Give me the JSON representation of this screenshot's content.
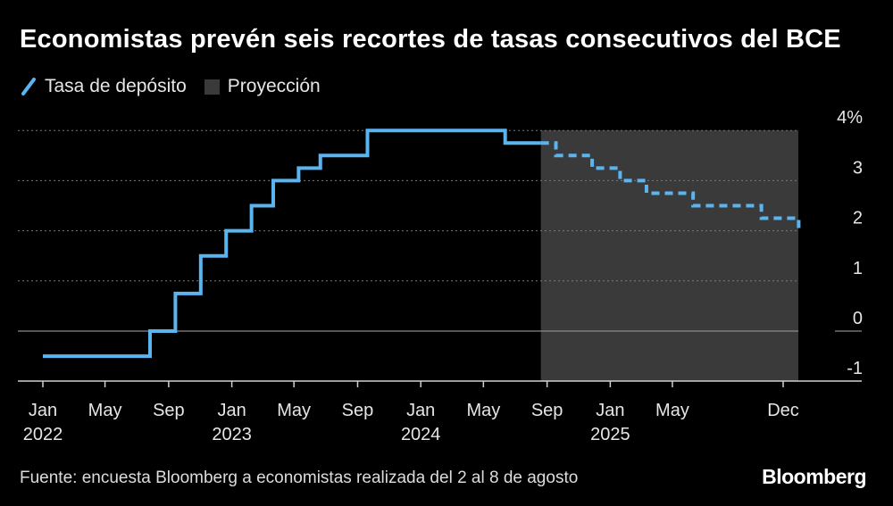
{
  "chart_data": {
    "type": "line",
    "title": "Economistas prevén seis recortes de tasas consecutivos del BCE",
    "legend": [
      {
        "name": "Tasa de depósito",
        "kind": "line",
        "color": "#5ab4f0"
      },
      {
        "name": "Proyección",
        "kind": "box",
        "color": "#3a3a3a"
      }
    ],
    "legend_placement": "top-left",
    "ylim": [
      -1,
      4
    ],
    "yticks": [
      {
        "value": 4,
        "label": "4%"
      },
      {
        "value": 3,
        "label": "3"
      },
      {
        "value": 2,
        "label": "2"
      },
      {
        "value": 1,
        "label": "1"
      },
      {
        "value": 0,
        "label": "0"
      },
      {
        "value": -1,
        "label": "-1"
      }
    ],
    "xlim": [
      "2021-12-15",
      "2026-01-31"
    ],
    "xticks": [
      {
        "date": "2022-01-01",
        "label": "Jan",
        "year": "2022"
      },
      {
        "date": "2022-05-01",
        "label": "May",
        "year": ""
      },
      {
        "date": "2022-09-01",
        "label": "Sep",
        "year": ""
      },
      {
        "date": "2023-01-01",
        "label": "Jan",
        "year": "2023"
      },
      {
        "date": "2023-05-01",
        "label": "May",
        "year": ""
      },
      {
        "date": "2023-09-01",
        "label": "Sep",
        "year": ""
      },
      {
        "date": "2024-01-01",
        "label": "Jan",
        "year": "2024"
      },
      {
        "date": "2024-05-01",
        "label": "May",
        "year": ""
      },
      {
        "date": "2024-09-01",
        "label": "Sep",
        "year": ""
      },
      {
        "date": "2025-01-01",
        "label": "Jan",
        "year": "2025"
      },
      {
        "date": "2025-05-01",
        "label": "May",
        "year": ""
      },
      {
        "date": "2025-12-01",
        "label": "Dec",
        "year": ""
      }
    ],
    "grid": true,
    "projection_span": [
      "2024-08-20",
      "2025-12-31"
    ],
    "series": [
      {
        "name": "Tasa de depósito",
        "style": "solid",
        "color": "#5ab4f0",
        "points": [
          [
            "2022-01-01",
            -0.5
          ],
          [
            "2022-07-27",
            0.0
          ],
          [
            "2022-09-14",
            0.75
          ],
          [
            "2022-11-02",
            1.5
          ],
          [
            "2022-12-21",
            2.0
          ],
          [
            "2023-02-08",
            2.5
          ],
          [
            "2023-03-22",
            3.0
          ],
          [
            "2023-05-10",
            3.25
          ],
          [
            "2023-06-21",
            3.5
          ],
          [
            "2023-09-20",
            4.0
          ],
          [
            "2024-06-12",
            3.75
          ],
          [
            "2024-08-20",
            3.75
          ]
        ]
      },
      {
        "name": "Proyección",
        "style": "dashed",
        "color": "#5ab4f0",
        "points": [
          [
            "2024-08-20",
            3.75
          ],
          [
            "2024-09-18",
            3.5
          ],
          [
            "2024-10-30",
            3.5
          ],
          [
            "2024-11-27",
            3.25
          ],
          [
            "2025-01-20",
            3.0
          ],
          [
            "2025-02-20",
            3.0
          ],
          [
            "2025-03-12",
            2.75
          ],
          [
            "2025-06-10",
            2.5
          ],
          [
            "2025-10-20",
            2.25
          ],
          [
            "2025-12-28",
            2.25
          ],
          [
            "2025-12-31",
            2.0
          ]
        ]
      }
    ]
  },
  "footer": {
    "source": "Fuente: encuesta Bloomberg a economistas realizada del 2 al 8 de agosto",
    "brand": "Bloomberg"
  }
}
